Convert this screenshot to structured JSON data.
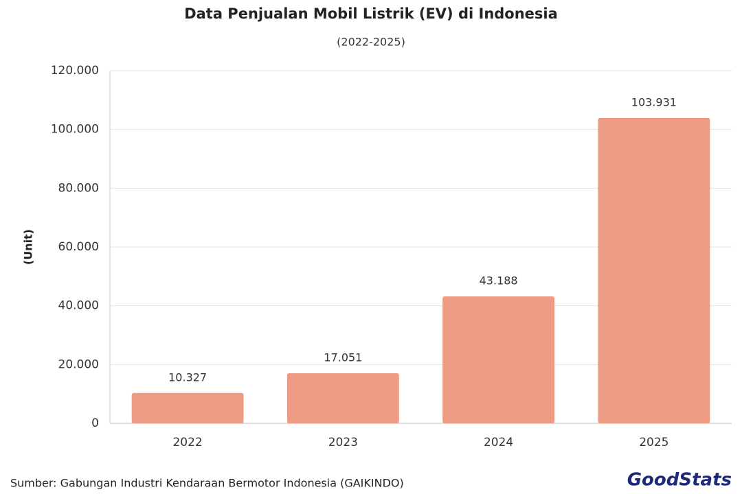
{
  "chart_data": {
    "type": "bar",
    "title": "Data Penjualan Mobil Listrik (EV) di Indonesia",
    "subtitle": "(2022-2025)",
    "y_label": "(Unit)",
    "source": "Sumber: Gabungan Industri Kendaraan Bermotor Indonesia (GAIKINDO)",
    "logo": "GoodStats",
    "categories": [
      "2022",
      "2023",
      "2024",
      "2025"
    ],
    "values": [
      10327,
      17051,
      43188,
      103931
    ],
    "value_labels": [
      "10.327",
      "17.051",
      "43.188",
      "103.931"
    ],
    "color": "#ee9b85",
    "ylim": [
      0,
      120000
    ],
    "yticks": [
      0,
      {
        "value": 20000,
        "label": "20.000"
      },
      {
        "value": 40000,
        "label": "40.000"
      },
      {
        "value": 60000,
        "label": "60.000"
      },
      {
        "value": 80000,
        "label": "80.000"
      },
      {
        "value": 100000,
        "label": "100.000"
      },
      {
        "value": 120000,
        "label": "120.000"
      }
    ],
    "grid": true
  }
}
